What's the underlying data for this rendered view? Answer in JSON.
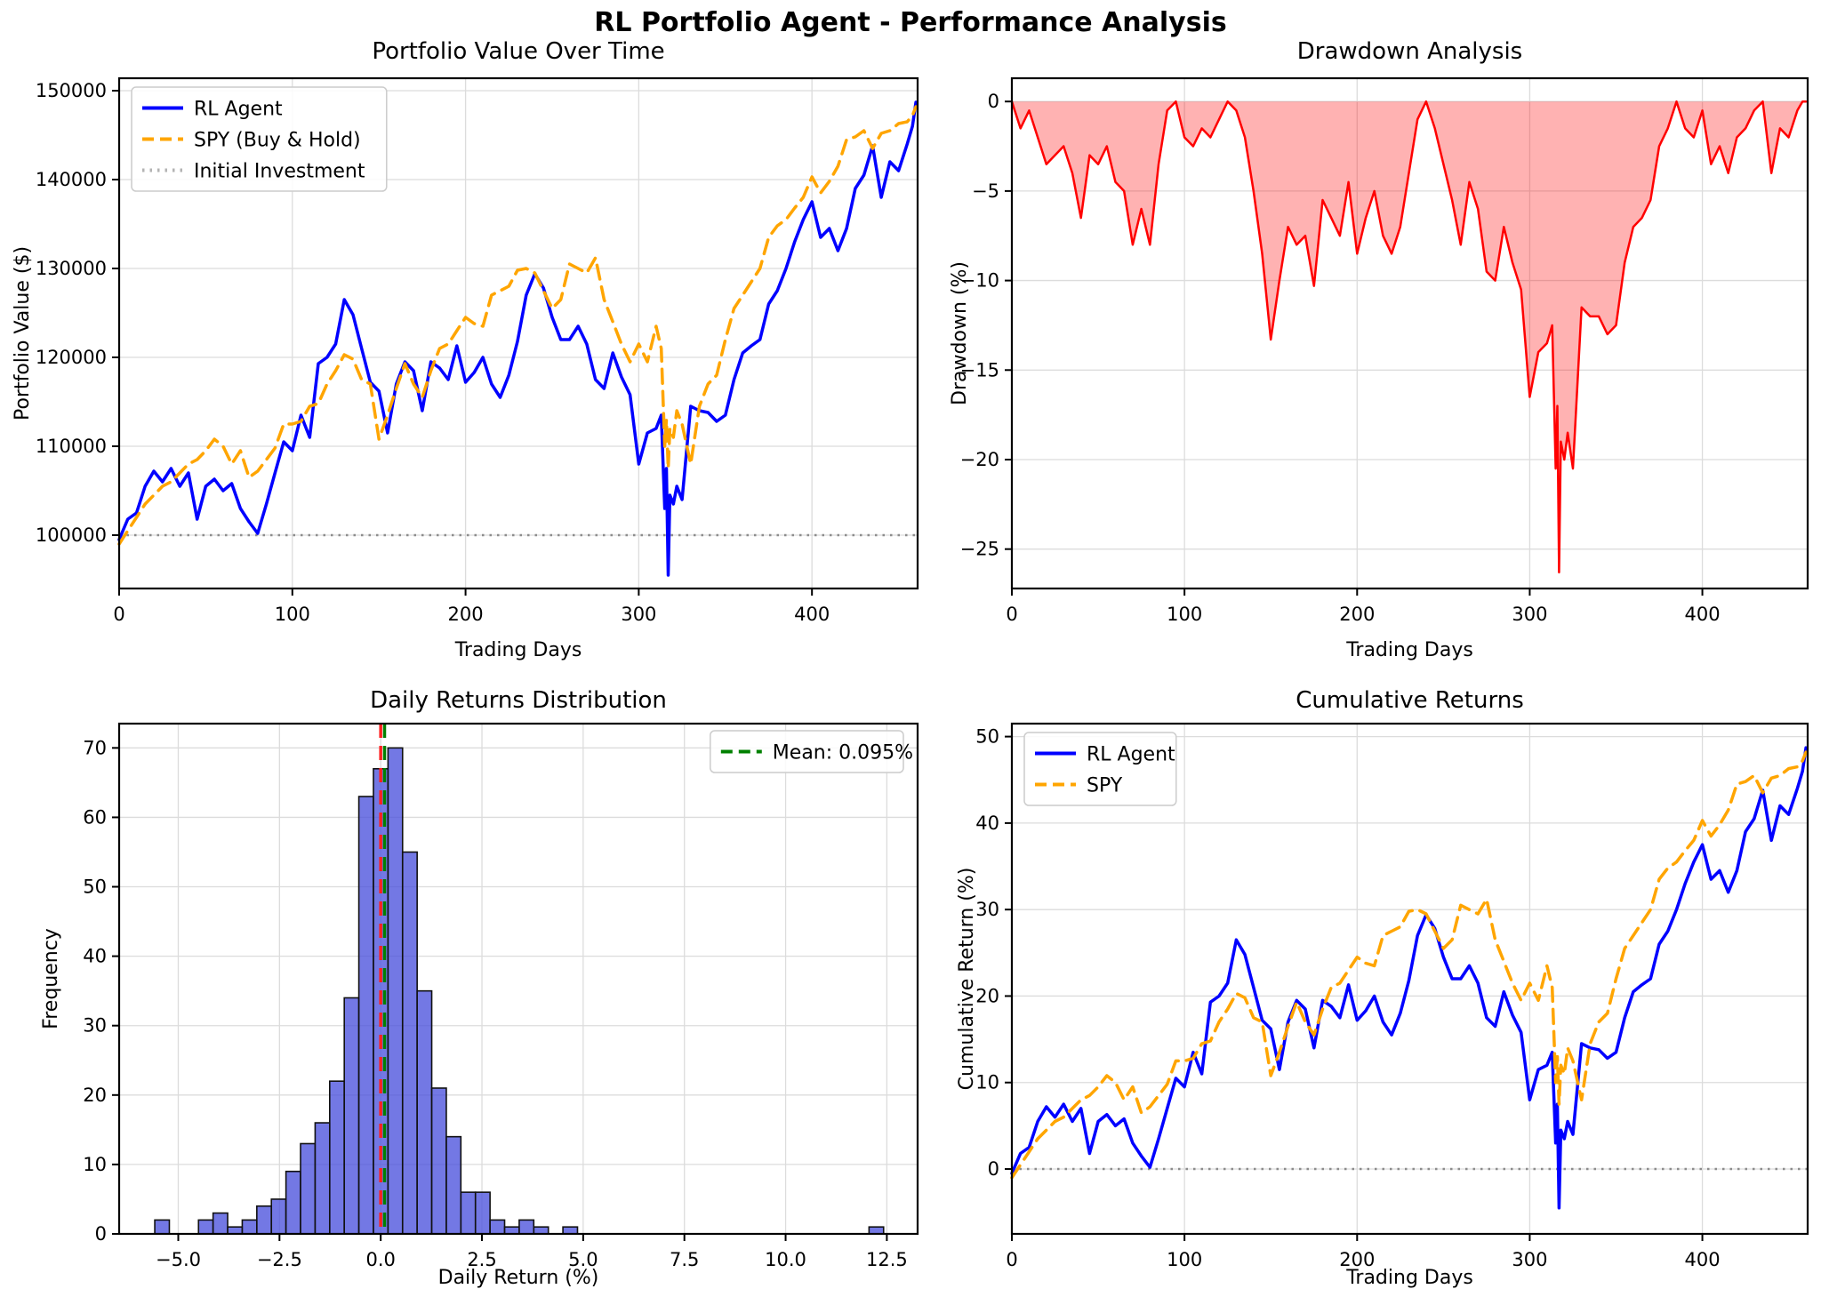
{
  "figure": {
    "suptitle": "RL Portfolio Agent - Performance Analysis"
  },
  "days": [
    0,
    5,
    10,
    15,
    20,
    25,
    30,
    35,
    40,
    45,
    50,
    55,
    60,
    65,
    70,
    75,
    80,
    85,
    90,
    95,
    100,
    105,
    110,
    115,
    120,
    125,
    130,
    135,
    140,
    145,
    150,
    155,
    160,
    165,
    170,
    175,
    180,
    185,
    190,
    195,
    200,
    205,
    210,
    215,
    220,
    225,
    230,
    235,
    240,
    245,
    250,
    255,
    260,
    265,
    270,
    275,
    280,
    285,
    290,
    295,
    300,
    305,
    310,
    313,
    315,
    316,
    317,
    318,
    320,
    322,
    325,
    330,
    335,
    340,
    345,
    350,
    355,
    360,
    365,
    370,
    375,
    380,
    385,
    390,
    395,
    400,
    405,
    410,
    415,
    420,
    425,
    430,
    435,
    440,
    445,
    450,
    455,
    458,
    460
  ],
  "chart_data": [
    {
      "name": "portfolio-value",
      "type": "line",
      "title": "Portfolio Value Over Time",
      "xlabel": "Trading Days",
      "ylabel": "Portfolio Value ($)",
      "xlim": [
        0,
        461
      ],
      "ylim": [
        94000,
        151400
      ],
      "xticks": [
        0,
        100,
        200,
        300,
        400
      ],
      "xtick_labels": [
        "0",
        "100",
        "200",
        "300",
        "400"
      ],
      "yticks": [
        100000,
        110000,
        120000,
        130000,
        140000,
        150000
      ],
      "ytick_labels": [
        "100000",
        "110000",
        "120000",
        "130000",
        "140000",
        "150000"
      ],
      "grid": true,
      "hlines": [
        {
          "y": 100000,
          "color": "#8c8c8c",
          "dash": "dotted",
          "width": 2.5,
          "label": "Initial Investment"
        }
      ],
      "series": [
        {
          "name": "RL Agent",
          "color": "#0000ff",
          "dash": "solid",
          "width": 3.5,
          "values": [
            99500,
            101800,
            102500,
            105500,
            107200,
            106000,
            107500,
            105500,
            107000,
            101800,
            105500,
            106300,
            105000,
            105800,
            103000,
            101500,
            100200,
            103500,
            107000,
            110500,
            109500,
            113500,
            111000,
            119300,
            120000,
            121500,
            126500,
            124800,
            121000,
            117200,
            116200,
            111500,
            117000,
            119500,
            118500,
            114000,
            119500,
            118800,
            117500,
            121300,
            117200,
            118300,
            120000,
            117000,
            115500,
            118000,
            121800,
            127000,
            129400,
            127800,
            124500,
            122000,
            122000,
            123500,
            121500,
            117500,
            116500,
            120500,
            117800,
            115800,
            108000,
            111500,
            112000,
            113500,
            103000,
            107500,
            95500,
            104500,
            103500,
            105500,
            104000,
            114500,
            114000,
            113800,
            112800,
            113500,
            117500,
            120500,
            121300,
            122000,
            126000,
            127500,
            130000,
            133000,
            135500,
            137500,
            133500,
            134500,
            132000,
            134500,
            139000,
            140500,
            143800,
            138000,
            142000,
            141000,
            144000,
            146000,
            148700
          ]
        },
        {
          "name": "SPY (Buy & Hold)",
          "color": "#ffa500",
          "dash": "dashed",
          "width": 3.5,
          "values": [
            99000,
            100500,
            102000,
            103500,
            104500,
            105500,
            106000,
            107000,
            108000,
            108500,
            109500,
            110800,
            110000,
            108000,
            109500,
            106500,
            107200,
            108500,
            109800,
            112500,
            112500,
            112800,
            114500,
            114800,
            117000,
            118500,
            120300,
            119800,
            117500,
            117000,
            110800,
            113500,
            116500,
            119300,
            117000,
            115500,
            118500,
            121000,
            121500,
            123000,
            124500,
            123800,
            123500,
            127000,
            127500,
            128000,
            129800,
            130000,
            129500,
            127500,
            125500,
            126500,
            130500,
            130000,
            129500,
            131200,
            126500,
            124000,
            121500,
            119500,
            121500,
            119500,
            123500,
            121000,
            110000,
            113000,
            107500,
            112000,
            111000,
            114000,
            112500,
            108000,
            114500,
            117000,
            118000,
            122000,
            125500,
            127000,
            128500,
            130000,
            133500,
            134800,
            135500,
            136800,
            138000,
            140300,
            138500,
            139800,
            141500,
            144500,
            144800,
            145500,
            143500,
            145200,
            145500,
            146300,
            146500,
            147200,
            148200
          ]
        }
      ],
      "legend": {
        "loc": "upper-left",
        "entries": [
          {
            "label": "RL Agent",
            "color": "#0000ff",
            "dash": "solid"
          },
          {
            "label": "SPY (Buy & Hold)",
            "color": "#ffa500",
            "dash": "dashed"
          },
          {
            "label": "Initial Investment",
            "color": "#b3b3b3",
            "dash": "dotted"
          }
        ]
      }
    },
    {
      "name": "drawdown",
      "type": "line",
      "title": "Drawdown Analysis",
      "xlabel": "Trading Days",
      "ylabel": "Drawdown (%)",
      "xlim": [
        0,
        461
      ],
      "ylim": [
        -27.2,
        1.3
      ],
      "xticks": [
        0,
        100,
        200,
        300,
        400
      ],
      "xtick_labels": [
        "0",
        "100",
        "200",
        "300",
        "400"
      ],
      "yticks": [
        0,
        -5,
        -10,
        -15,
        -20,
        -25
      ],
      "ytick_labels": [
        "0",
        "−5",
        "−10",
        "−15",
        "−20",
        "−25"
      ],
      "grid": true,
      "hlines": [],
      "series": [
        {
          "name": "Drawdown",
          "color": "#ff0000",
          "dash": "solid",
          "width": 2.5,
          "fill_to_zero": true,
          "fill_color": "rgba(255,0,0,0.3)",
          "values": [
            0,
            -1.5,
            -0.5,
            -2,
            -3.5,
            -3,
            -2.5,
            -4,
            -6.5,
            -3,
            -3.5,
            -2.5,
            -4.5,
            -5,
            -8,
            -6,
            -8,
            -3.5,
            -0.5,
            0,
            -2,
            -2.5,
            -1.5,
            -2,
            -1,
            0,
            -0.5,
            -2,
            -5,
            -8.5,
            -13.3,
            -10,
            -7,
            -8,
            -7.5,
            -10.3,
            -5.5,
            -6.5,
            -7.5,
            -4.5,
            -8.5,
            -6.5,
            -5,
            -7.5,
            -8.5,
            -7,
            -4,
            -1,
            0,
            -1.5,
            -3.5,
            -5.5,
            -8,
            -4.5,
            -6,
            -9.5,
            -10,
            -7,
            -9,
            -10.5,
            -16.5,
            -14,
            -13.5,
            -12.5,
            -20.5,
            -17,
            -26.3,
            -19,
            -20,
            -18.5,
            -20.5,
            -11.5,
            -12,
            -12,
            -13,
            -12.5,
            -9,
            -7,
            -6.5,
            -5.5,
            -2.5,
            -1.5,
            0,
            -1.5,
            -2,
            -0.5,
            -3.5,
            -2.5,
            -4,
            -2,
            -1.5,
            -0.5,
            0,
            -4,
            -1.5,
            -2,
            -0.5,
            0,
            0
          ]
        }
      ],
      "legend": null
    },
    {
      "name": "daily-returns-distribution",
      "type": "histogram",
      "title": "Daily Returns Distribution",
      "xlabel": "Daily Return (%)",
      "ylabel": "Frequency",
      "xlim": [
        -6.46,
        13.26
      ],
      "ylim": [
        0,
        73.5
      ],
      "xticks": [
        -5.0,
        -2.5,
        0.0,
        2.5,
        5.0,
        7.5,
        10.0,
        12.5
      ],
      "xtick_labels": [
        "−5.0",
        "−2.5",
        "0.0",
        "2.5",
        "5.0",
        "7.5",
        "10.0",
        "12.5"
      ],
      "yticks": [
        0,
        10,
        20,
        30,
        40,
        50,
        60,
        70
      ],
      "ytick_labels": [
        "0",
        "10",
        "20",
        "30",
        "40",
        "50",
        "60",
        "70"
      ],
      "grid": true,
      "bin_start": -5.58,
      "bin_width": 0.36,
      "counts": [
        2,
        0,
        0,
        2,
        3,
        1,
        2,
        4,
        5,
        9,
        13,
        16,
        22,
        34,
        63,
        67,
        70,
        55,
        35,
        21,
        14,
        6,
        6,
        2,
        1,
        2,
        1,
        0,
        1,
        0,
        0,
        0,
        0,
        0,
        0,
        0,
        0,
        0,
        0,
        0,
        0,
        0,
        0,
        0,
        0,
        0,
        0,
        0,
        0,
        1
      ],
      "bar_color": "#4c52dd",
      "bar_edge": "#111111",
      "vlines": [
        {
          "x": 0.0,
          "color": "#ff2020",
          "dash": "dashed",
          "width": 3.5,
          "label": null
        },
        {
          "x": 0.095,
          "color": "#008000",
          "dash": "dashed",
          "width": 3.5,
          "label": "Mean: 0.095%"
        }
      ],
      "mean_pct": "0.095%",
      "legend": {
        "loc": "upper-right",
        "entries": [
          {
            "label": "Mean: 0.095%",
            "color": "#008000",
            "dash": "dashed"
          }
        ]
      }
    },
    {
      "name": "cumulative-returns",
      "type": "line",
      "title": "Cumulative Returns",
      "xlabel": "Trading Days",
      "ylabel": "Cumulative Return (%)",
      "xlim": [
        0,
        461
      ],
      "ylim": [
        -7.5,
        51.5
      ],
      "xticks": [
        0,
        100,
        200,
        300,
        400
      ],
      "xtick_labels": [
        "0",
        "100",
        "200",
        "300",
        "400"
      ],
      "yticks": [
        0,
        10,
        20,
        30,
        40,
        50
      ],
      "ytick_labels": [
        "0",
        "10",
        "20",
        "30",
        "40",
        "50"
      ],
      "grid": true,
      "hlines": [
        {
          "y": 0,
          "color": "#8c8c8c",
          "dash": "dotted",
          "width": 2.5,
          "label": null
        }
      ],
      "series": [
        {
          "name": "RL Agent",
          "color": "#0000ff",
          "dash": "solid",
          "width": 3.5,
          "values": [
            -0.5,
            1.8,
            2.5,
            5.5,
            7.2,
            6,
            7.5,
            5.5,
            7,
            1.8,
            5.5,
            6.3,
            5,
            5.8,
            3,
            1.5,
            0.2,
            3.5,
            7,
            10.5,
            9.5,
            13.5,
            11,
            19.3,
            20,
            21.5,
            26.5,
            24.8,
            21,
            17.2,
            16.2,
            11.5,
            17,
            19.5,
            18.5,
            14,
            19.5,
            18.8,
            17.5,
            21.3,
            17.2,
            18.3,
            20,
            17,
            15.5,
            18,
            21.8,
            27,
            29.4,
            27.8,
            24.5,
            22,
            22,
            23.5,
            21.5,
            17.5,
            16.5,
            20.5,
            17.8,
            15.8,
            8,
            11.5,
            12,
            13.5,
            3,
            7.5,
            -4.5,
            4.5,
            3.5,
            5.5,
            4,
            14.5,
            14,
            13.8,
            12.8,
            13.5,
            17.5,
            20.5,
            21.3,
            22,
            26,
            27.5,
            30,
            33,
            35.5,
            37.5,
            33.5,
            34.5,
            32,
            34.5,
            39,
            40.5,
            43.8,
            38,
            42,
            41,
            44,
            46,
            48.7
          ]
        },
        {
          "name": "SPY",
          "color": "#ffa500",
          "dash": "dashed",
          "width": 3.5,
          "values": [
            -1,
            0.5,
            2,
            3.5,
            4.5,
            5.5,
            6,
            7,
            8,
            8.5,
            9.5,
            10.8,
            10,
            8,
            9.5,
            6.5,
            7.2,
            8.5,
            9.8,
            12.5,
            12.5,
            12.8,
            14.5,
            14.8,
            17,
            18.5,
            20.3,
            19.8,
            17.5,
            17,
            10.8,
            13.5,
            16.5,
            19.3,
            17,
            15.5,
            18.5,
            21,
            21.5,
            23,
            24.5,
            23.8,
            23.5,
            27,
            27.5,
            28,
            29.8,
            30,
            29.5,
            27.5,
            25.5,
            26.5,
            30.5,
            30,
            29.5,
            31.2,
            26.5,
            24,
            21.5,
            19.5,
            21.5,
            19.5,
            23.5,
            21,
            10,
            13,
            7.5,
            12,
            11,
            14,
            12.5,
            8,
            14.5,
            17,
            18,
            22,
            25.5,
            27,
            28.5,
            30,
            33.5,
            34.8,
            35.5,
            36.8,
            38,
            40.3,
            38.5,
            39.8,
            41.5,
            44.5,
            44.8,
            45.5,
            43.5,
            45.2,
            45.5,
            46.3,
            46.5,
            47.2,
            48.2
          ]
        }
      ],
      "legend": {
        "loc": "upper-left",
        "entries": [
          {
            "label": "RL Agent",
            "color": "#0000ff",
            "dash": "solid"
          },
          {
            "label": "SPY",
            "color": "#ffa500",
            "dash": "dashed"
          }
        ]
      }
    }
  ]
}
